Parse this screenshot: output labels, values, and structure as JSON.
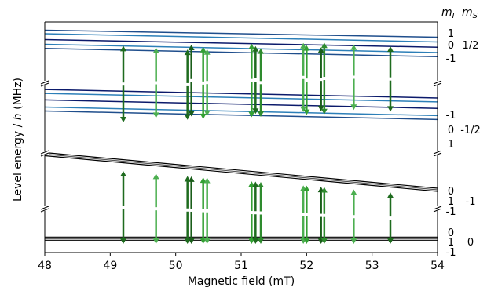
{
  "chart_data": {
    "type": "line",
    "xlabel": "Magnetic field (mT)",
    "ylabel_parts": [
      "Level energy / ",
      "h",
      " (MHz)"
    ],
    "xlim": [
      48,
      54
    ],
    "x_ticks": [
      "48",
      "49",
      "50",
      "51",
      "52",
      "53",
      "54"
    ],
    "right_header": {
      "ml": "m",
      "ml_sub": "I",
      "ms": "m",
      "ms_sub": "S"
    },
    "broken_axis": true,
    "panels": [
      {
        "ms": "1/2",
        "ml_labels": [
          "1",
          "0",
          "-1"
        ],
        "lines": [
          {
            "ml": "1",
            "color": "#1f4e8c",
            "y": [
              0.86,
              0.74
            ]
          },
          {
            "ml": "1b",
            "color": "#2c7fb8",
            "y": [
              0.8,
              0.66
            ]
          },
          {
            "ml": "0",
            "color": "#0b1a6b",
            "y": [
              0.7,
              0.57
            ]
          },
          {
            "ml": "-1",
            "color": "#2c7fb8",
            "y": [
              0.62,
              0.48
            ]
          },
          {
            "ml": "-1b",
            "color": "#1f4e8c",
            "y": [
              0.55,
              0.41
            ]
          }
        ]
      },
      {
        "ms": "-1/2",
        "ml_labels": [
          "-1",
          "0",
          "1"
        ],
        "lines": [
          {
            "ml": "-1",
            "color": "#0b1a6b",
            "y": [
              0.95,
              0.82
            ]
          },
          {
            "ml": "-1b",
            "color": "#2c7fb8",
            "y": [
              0.89,
              0.76
            ]
          },
          {
            "ml": "0",
            "color": "#0b1a6b",
            "y": [
              0.79,
              0.66
            ]
          },
          {
            "ml": "1",
            "color": "#2c7fb8",
            "y": [
              0.68,
              0.55
            ]
          },
          {
            "ml": "1b",
            "color": "#1f4e8c",
            "y": [
              0.62,
              0.49
            ]
          }
        ]
      },
      {
        "ms": "-1",
        "ml_labels": [
          "0",
          "1",
          "-1"
        ],
        "lines": [
          {
            "ml": "triple",
            "color": "#000000",
            "y": [
              0.95,
              0.3
            ]
          }
        ]
      },
      {
        "ms": "0",
        "ml_labels": [
          "0",
          "1",
          "-1"
        ],
        "lines": [
          {
            "ml": "triple",
            "color": "#000000",
            "y": [
              0.3,
              0.3
            ]
          }
        ]
      }
    ],
    "transitions_upper": [
      {
        "x": 49.2,
        "color": "#1e6b1e"
      },
      {
        "x": 49.7,
        "color": "#4caf50"
      },
      {
        "x": 50.18,
        "color": "#1e6b1e"
      },
      {
        "x": 50.24,
        "color": "#1a5e1a"
      },
      {
        "x": 50.42,
        "color": "#33a033"
      },
      {
        "x": 50.48,
        "color": "#4caf50"
      },
      {
        "x": 51.16,
        "color": "#33a033"
      },
      {
        "x": 51.22,
        "color": "#1e6b1e"
      },
      {
        "x": 51.3,
        "color": "#2e8b2e"
      },
      {
        "x": 51.95,
        "color": "#4caf50"
      },
      {
        "x": 52.0,
        "color": "#33a033"
      },
      {
        "x": 52.22,
        "color": "#1a5e1a"
      },
      {
        "x": 52.27,
        "color": "#2e8b2e"
      },
      {
        "x": 52.72,
        "color": "#4caf50"
      },
      {
        "x": 53.28,
        "color": "#1e6b1e"
      }
    ],
    "transitions_lower": [
      {
        "x": 49.2,
        "color": "#1e6b1e"
      },
      {
        "x": 49.7,
        "color": "#4caf50"
      },
      {
        "x": 50.18,
        "color": "#1e6b1e"
      },
      {
        "x": 50.24,
        "color": "#1a5e1a"
      },
      {
        "x": 50.42,
        "color": "#33a033"
      },
      {
        "x": 50.48,
        "color": "#4caf50"
      },
      {
        "x": 51.16,
        "color": "#33a033"
      },
      {
        "x": 51.22,
        "color": "#1e6b1e"
      },
      {
        "x": 51.3,
        "color": "#2e8b2e"
      },
      {
        "x": 51.95,
        "color": "#4caf50"
      },
      {
        "x": 52.0,
        "color": "#33a033"
      },
      {
        "x": 52.22,
        "color": "#1a5e1a"
      },
      {
        "x": 52.27,
        "color": "#2e8b2e"
      },
      {
        "x": 52.72,
        "color": "#4caf50"
      },
      {
        "x": 53.28,
        "color": "#1e6b1e"
      }
    ]
  }
}
